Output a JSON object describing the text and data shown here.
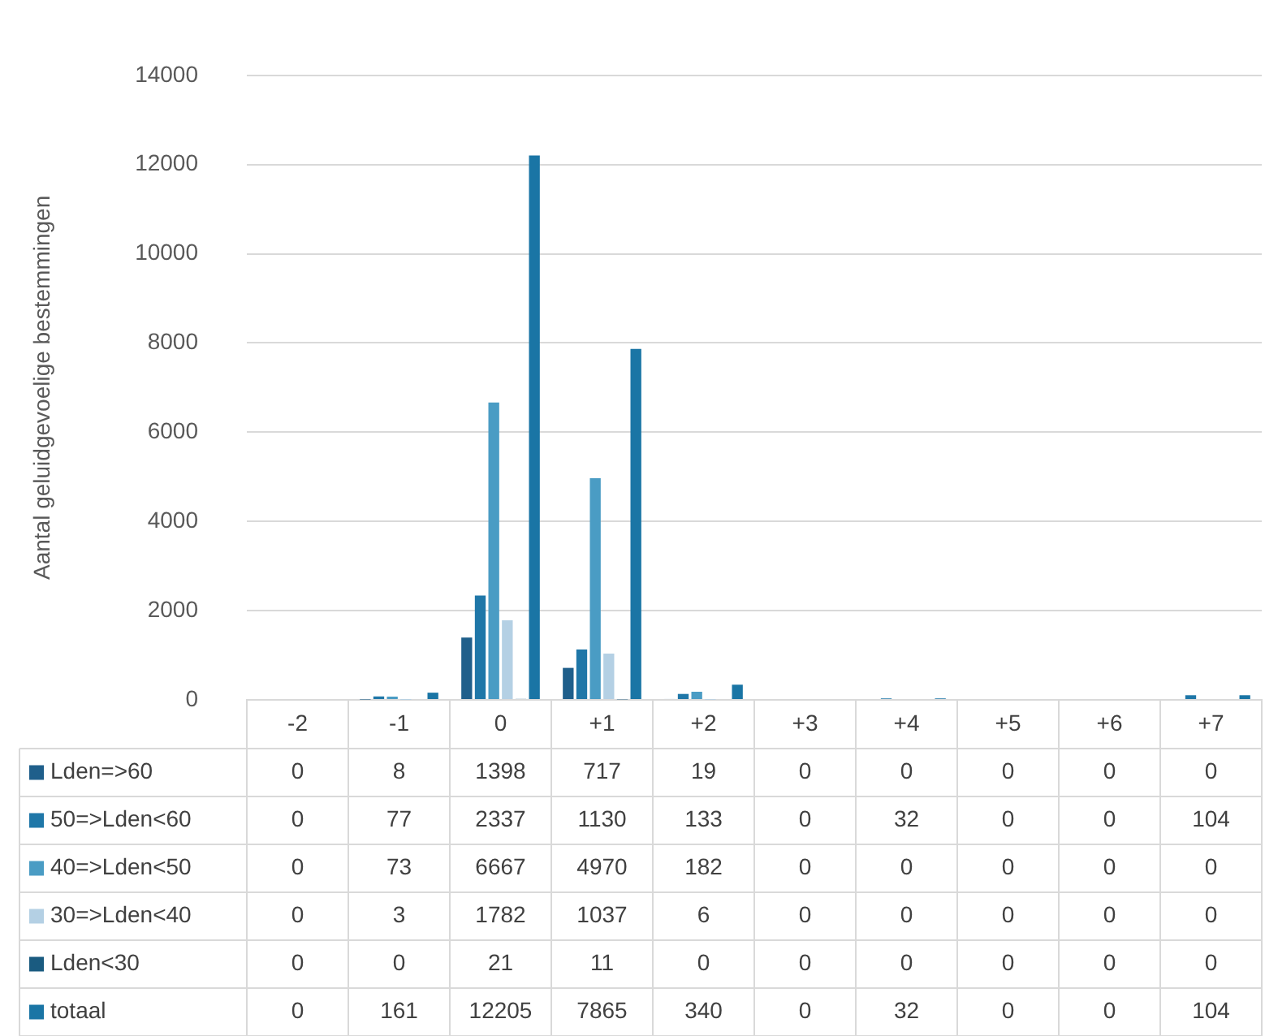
{
  "chart_data": {
    "type": "bar",
    "ylabel": "Aantal geluidgevoelige bestemmingen",
    "categories": [
      "-2",
      "-1",
      "0",
      "+1",
      "+2",
      "+3",
      "+4",
      "+5",
      "+6",
      "+7"
    ],
    "series": [
      {
        "name": "Lden=>60",
        "color": "#1f5f8b",
        "values": [
          0,
          8,
          1398,
          717,
          19,
          0,
          0,
          0,
          0,
          0
        ]
      },
      {
        "name": "50=>Lden<60",
        "color": "#1f77a8",
        "values": [
          0,
          77,
          2337,
          1130,
          133,
          0,
          32,
          0,
          0,
          104
        ]
      },
      {
        "name": "40=>Lden<50",
        "color": "#4a9cc4",
        "values": [
          0,
          73,
          6667,
          4970,
          182,
          0,
          0,
          0,
          0,
          0
        ]
      },
      {
        "name": "30=>Lden<40",
        "color": "#b4d0e4",
        "values": [
          0,
          3,
          1782,
          1037,
          6,
          0,
          0,
          0,
          0,
          0
        ]
      },
      {
        "name": "Lden<30",
        "color": "#1a5b80",
        "values": [
          0,
          0,
          21,
          11,
          0,
          0,
          0,
          0,
          0,
          0
        ]
      },
      {
        "name": "totaal",
        "color": "#1a75a5",
        "values": [
          0,
          161,
          12205,
          7865,
          340,
          0,
          32,
          0,
          0,
          104
        ]
      }
    ],
    "ylim": [
      0,
      14000
    ],
    "yticks": [
      0,
      2000,
      4000,
      6000,
      8000,
      10000,
      12000,
      14000
    ],
    "grid": "y",
    "legend": "bottom left",
    "data_labels": true
  }
}
